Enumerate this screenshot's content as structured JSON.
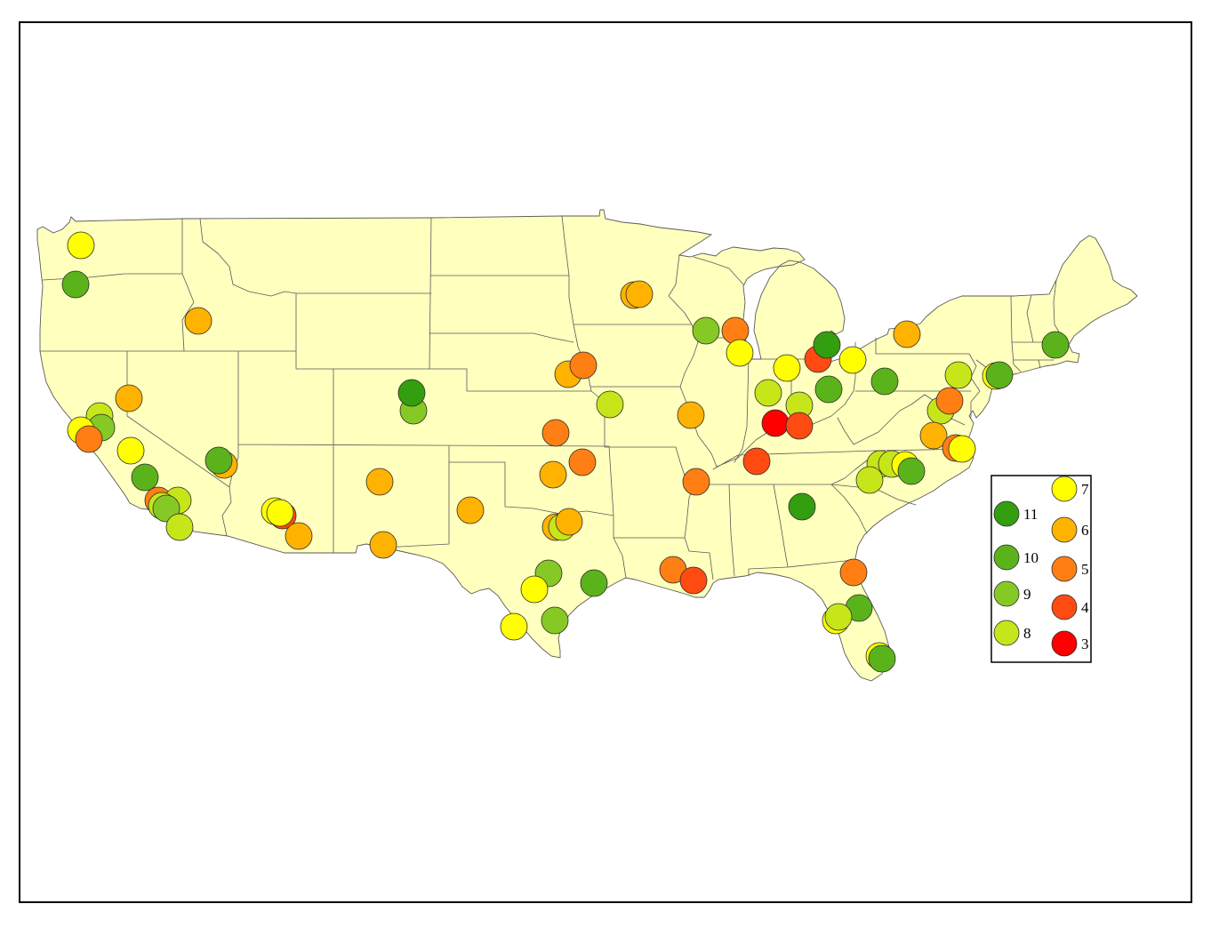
{
  "map": {
    "land_color": "#ffffbe",
    "border_color": "#5a5a5a"
  },
  "legend": {
    "entries": [
      {
        "label": "11",
        "value": 11,
        "color": "#339e0f"
      },
      {
        "label": "10",
        "value": 10,
        "color": "#5bb31c"
      },
      {
        "label": "9",
        "value": 9,
        "color": "#86c924"
      },
      {
        "label": "8",
        "value": 8,
        "color": "#c6e619"
      },
      {
        "label": "7",
        "value": 7,
        "color": "#ffff00"
      },
      {
        "label": "6",
        "value": 6,
        "color": "#ffb300"
      },
      {
        "label": "5",
        "value": 5,
        "color": "#ff7f14"
      },
      {
        "label": "4",
        "value": 4,
        "color": "#ff4b12"
      },
      {
        "label": "3",
        "value": 3,
        "color": "#ff0000"
      }
    ]
  },
  "markers": [
    7,
    10,
    6,
    6,
    8,
    9,
    7,
    5,
    7,
    10,
    5,
    8,
    8,
    9,
    8,
    6,
    10,
    4,
    7,
    7,
    6,
    6,
    6,
    9,
    11,
    6,
    5,
    5,
    6,
    6,
    8,
    6,
    9,
    7,
    10,
    9,
    7,
    6,
    5,
    8,
    6,
    6,
    9,
    5,
    7,
    7,
    4,
    11,
    7,
    6,
    8,
    8,
    10,
    3,
    4,
    4,
    5,
    11,
    10,
    6,
    8,
    8,
    5,
    7,
    10,
    10,
    6,
    5,
    7,
    8,
    8,
    7,
    10,
    8,
    5,
    10,
    7,
    8,
    7,
    10,
    5,
    4
  ]
}
